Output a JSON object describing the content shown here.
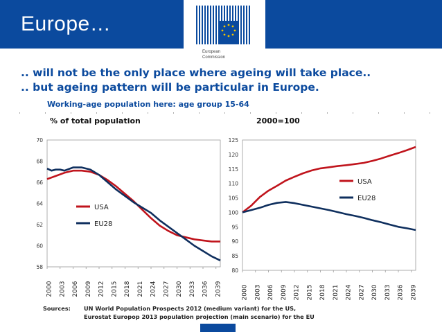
{
  "slide": {
    "title": "Europe…",
    "headline1": ".. will not be the only place where ageing will take place..",
    "headline2": ".. but ageing pattern will be particular in Europe.",
    "subtitle": "Working-age population here: age group 15-64",
    "logo_line1": "European",
    "logo_line2": "Commission",
    "sources_label": "Sources:",
    "source1": "UN World Population Prospects 2012 (medium variant) for the US,",
    "source2": "Eurostat Europop 2013 population projection (main scenario) for the EU",
    "colors": {
      "brand_blue": "#0b4a9e",
      "usa": "#c0141c",
      "eu28": "#0f2f5e",
      "logo_gold": "#f2c500"
    }
  },
  "chart_data": [
    {
      "type": "line",
      "title": "% of total population",
      "ylim": [
        58,
        70
      ],
      "yticks": [
        58,
        60,
        62,
        64,
        66,
        68,
        70
      ],
      "xticks": [
        "2000",
        "2003",
        "2006",
        "2009",
        "2012",
        "2015",
        "2018",
        "2021",
        "2024",
        "2027",
        "2030",
        "2033",
        "2036",
        "2039"
      ],
      "xlim": [
        2000,
        2040
      ],
      "grid": false,
      "legend_position": "center-left",
      "series": [
        {
          "name": "USA",
          "color": "#c0141c",
          "x": [
            2000,
            2002,
            2004,
            2006,
            2008,
            2010,
            2012,
            2014,
            2016,
            2018,
            2020,
            2022,
            2024,
            2026,
            2028,
            2030,
            2032,
            2034,
            2036,
            2038,
            2040
          ],
          "y": [
            66.3,
            66.6,
            66.9,
            67.1,
            67.1,
            67.0,
            66.7,
            66.2,
            65.6,
            64.9,
            64.2,
            63.4,
            62.6,
            61.9,
            61.4,
            61.0,
            60.8,
            60.6,
            60.5,
            60.4,
            60.4
          ]
        },
        {
          "name": "EU28",
          "color": "#0f2f5e",
          "x": [
            2000,
            2001,
            2002,
            2003,
            2004,
            2006,
            2008,
            2010,
            2012,
            2014,
            2016,
            2018,
            2020,
            2022,
            2024,
            2026,
            2028,
            2030,
            2032,
            2034,
            2036,
            2038,
            2040
          ],
          "y": [
            67.3,
            67.1,
            67.2,
            67.2,
            67.1,
            67.4,
            67.4,
            67.2,
            66.7,
            66.0,
            65.3,
            64.7,
            64.1,
            63.6,
            63.1,
            62.4,
            61.8,
            61.2,
            60.6,
            60.0,
            59.5,
            59.0,
            58.6
          ]
        }
      ]
    },
    {
      "type": "line",
      "title": "2000=100",
      "ylim": [
        80,
        125
      ],
      "yticks": [
        80,
        85,
        90,
        95,
        100,
        105,
        110,
        115,
        120,
        125
      ],
      "xticks": [
        "2000",
        "2003",
        "2006",
        "2009",
        "2012",
        "2015",
        "2018",
        "2021",
        "2024",
        "2027",
        "2030",
        "2033",
        "2036",
        "2039"
      ],
      "xlim": [
        2000,
        2040
      ],
      "grid": false,
      "legend_position": "center-right",
      "series": [
        {
          "name": "USA",
          "color": "#c0141c",
          "x": [
            2000,
            2002,
            2004,
            2006,
            2008,
            2010,
            2012,
            2014,
            2016,
            2018,
            2020,
            2022,
            2024,
            2026,
            2028,
            2030,
            2032,
            2034,
            2036,
            2038,
            2040
          ],
          "y": [
            100,
            102.3,
            105.3,
            107.5,
            109.2,
            111.0,
            112.3,
            113.5,
            114.5,
            115.2,
            115.6,
            116.0,
            116.3,
            116.7,
            117.1,
            117.8,
            118.6,
            119.6,
            120.5,
            121.5,
            122.6
          ]
        },
        {
          "name": "EU28",
          "color": "#0f2f5e",
          "x": [
            2000,
            2002,
            2004,
            2006,
            2008,
            2010,
            2012,
            2014,
            2016,
            2018,
            2020,
            2022,
            2024,
            2026,
            2028,
            2030,
            2032,
            2034,
            2036,
            2038,
            2040
          ],
          "y": [
            100,
            100.8,
            101.6,
            102.6,
            103.3,
            103.6,
            103.2,
            102.6,
            102.0,
            101.4,
            100.8,
            100.1,
            99.4,
            98.8,
            98.1,
            97.3,
            96.6,
            95.8,
            95.0,
            94.5,
            93.9
          ]
        }
      ]
    }
  ]
}
